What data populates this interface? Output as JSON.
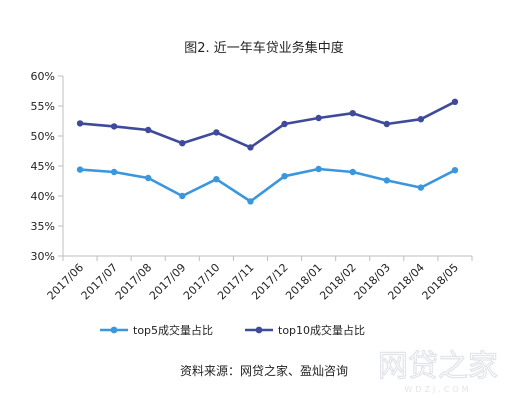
{
  "chart_data": {
    "type": "line",
    "title": "图2. 近一年车贷业务集中度",
    "categories": [
      "2017/06",
      "2017/07",
      "2017/08",
      "2017/09",
      "2017/10",
      "2017/11",
      "2017/12",
      "2018/01",
      "2018/02",
      "2018/03",
      "2018/04",
      "2018/05"
    ],
    "series": [
      {
        "name": "top5成交量占比",
        "color": "#3a96dd",
        "values": [
          44.4,
          44.0,
          43.0,
          40.0,
          42.8,
          39.1,
          43.3,
          44.5,
          44.0,
          42.6,
          41.4,
          44.3
        ]
      },
      {
        "name": "top10成交量占比",
        "color": "#3f4a9a",
        "values": [
          52.1,
          51.6,
          51.0,
          48.8,
          50.6,
          48.1,
          52.0,
          53.0,
          53.8,
          52.0,
          52.8,
          55.7
        ]
      }
    ],
    "yticks": [
      "30%",
      "35%",
      "40%",
      "45%",
      "50%",
      "55%",
      "60%"
    ],
    "ylim": [
      30,
      60
    ],
    "grid": false,
    "legend_position": "bottom",
    "source": "资料来源：网贷之家、盈灿咨询"
  },
  "watermark": {
    "text": "网贷之家",
    "subtext": "WDZJ.COM"
  }
}
